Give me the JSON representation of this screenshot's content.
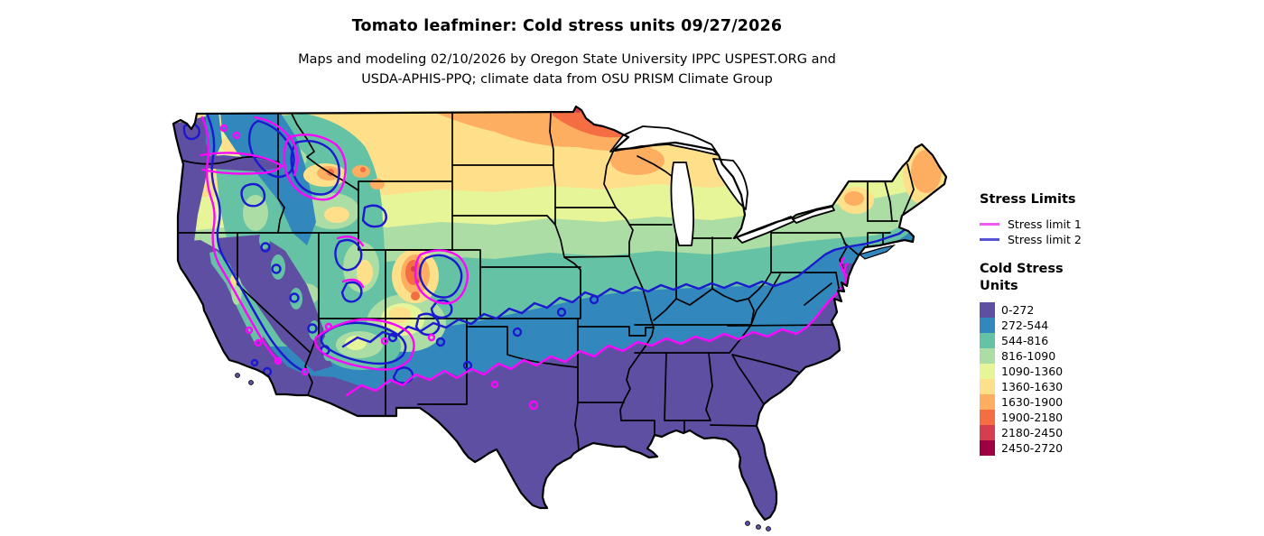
{
  "title": "Tomato leafminer: Cold stress units 09/27/2026",
  "subtitle": [
    "Maps and modeling 02/10/2026 by Oregon State University IPPC USPEST.ORG and",
    "USDA-APHIS-PPQ; climate data from OSU PRISM Climate Group"
  ],
  "legend": {
    "stress_limits_heading": "Stress Limits",
    "stress_limits": [
      {
        "label": "Stress limit 1",
        "color": "#ef5cef"
      },
      {
        "label": "Stress limit 2",
        "color": "#5753d6"
      }
    ],
    "cold_stress_heading": [
      "Cold Stress",
      "Units"
    ],
    "bins": [
      {
        "label": "0-272",
        "color": "#5e4fa2"
      },
      {
        "label": "272-544",
        "color": "#3288bd"
      },
      {
        "label": "544-816",
        "color": "#66c2a5"
      },
      {
        "label": "816-1090",
        "color": "#abdda4"
      },
      {
        "label": "1090-1360",
        "color": "#e6f598"
      },
      {
        "label": "1360-1630",
        "color": "#fee08b"
      },
      {
        "label": "1630-1900",
        "color": "#fdae61"
      },
      {
        "label": "1900-2180",
        "color": "#f46d43"
      },
      {
        "label": "2180-2450",
        "color": "#d53e4f"
      },
      {
        "label": "2450-2720",
        "color": "#9e0142"
      }
    ]
  },
  "map": {
    "region": "Contiguous United States",
    "stress_limit_1_color": "#fb07fb",
    "stress_limit_2_color": "#1c1ace",
    "state_border_color": "#000000",
    "water_color": "#ffffff"
  }
}
